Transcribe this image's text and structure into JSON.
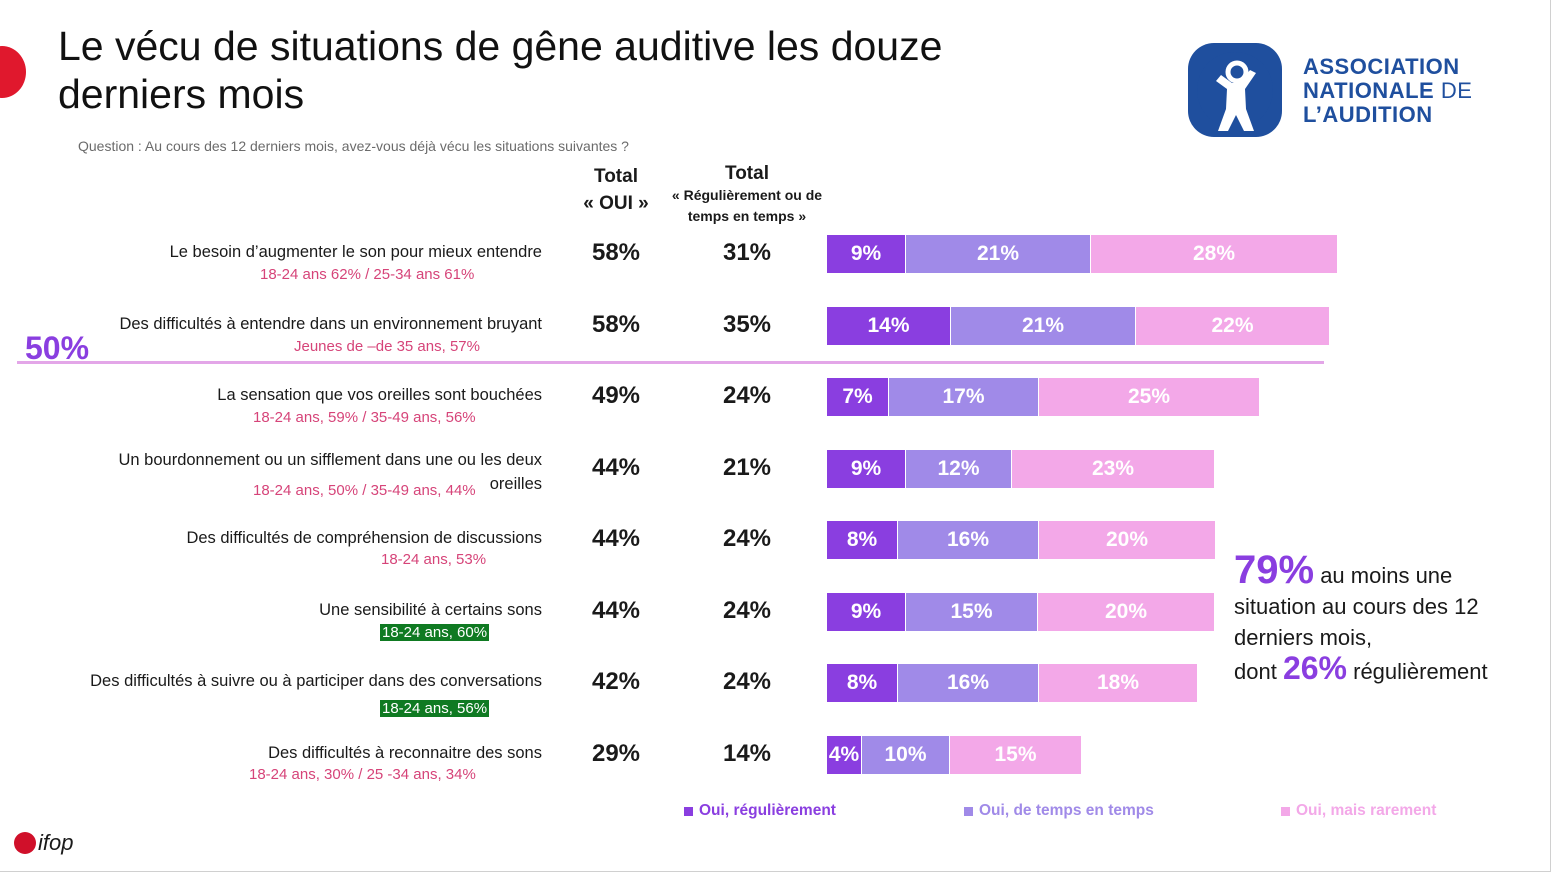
{
  "title": "Le vécu de situations de gêne auditive les douze derniers mois",
  "question": "Question : Au cours des 12 derniers mois, avez-vous déjà vécu les situations suivantes ?",
  "logo": {
    "line1": "ASSOCIATION",
    "line2a": "NATIONALE",
    "line2b": "DE",
    "line3": "L’AUDITION"
  },
  "headers": {
    "total_oui_1": "Total",
    "total_oui_2": "« OUI »",
    "total_reg_1": "Total",
    "total_reg_2": "« Régulièrement ou de temps en temps »"
  },
  "threshold": {
    "label": "50%",
    "value": 50
  },
  "colors": {
    "regular": "#8a3ee0",
    "sometimes": "#a08ae8",
    "rarely": "#f3a8e8",
    "subtext": "#d64479",
    "highlight": "#0f7a22"
  },
  "summary": {
    "big": "79%",
    "text1": "au moins une situation au cours des 12 derniers mois,",
    "text2a": "dont",
    "mid": "26%",
    "text2b": "régulièrement"
  },
  "legend": [
    "Oui, régulièrement",
    "Oui, de temps en temps",
    "Oui, mais rarement"
  ],
  "chart_data": {
    "type": "bar",
    "orientation": "horizontal",
    "stacked": true,
    "categories": [
      "Le besoin d’augmenter le son pour mieux entendre",
      "Des difficultés à entendre dans un environnement bruyant",
      "La sensation que vos oreilles sont bouchées",
      "Un bourdonnement ou un sifflement dans une ou les deux oreilles",
      "Des difficultés de compréhension de discussions",
      "Une sensibilité à certains sons",
      "Des difficultés à suivre ou à participer dans des conversations",
      "Des difficultés à reconnaitre des sons"
    ],
    "subtitles": [
      "18-24 ans 62% / 25-34 ans 61%",
      "Jeunes de –de 35 ans, 57%",
      "18-24 ans, 59% / 35-49 ans, 56%",
      "18-24 ans, 50% / 35-49 ans, 44%",
      "18-24 ans, 53%",
      "18-24 ans, 60%",
      "18-24 ans, 56%",
      "18-24 ans, 30% / 25 -34 ans, 34%"
    ],
    "subtitle_highlight": [
      false,
      false,
      false,
      false,
      false,
      true,
      true,
      false
    ],
    "total_oui": [
      "58%",
      "58%",
      "49%",
      "44%",
      "44%",
      "44%",
      "42%",
      "29%"
    ],
    "total_regular_or_sometimes": [
      "31%",
      "35%",
      "24%",
      "21%",
      "24%",
      "24%",
      "24%",
      "14%"
    ],
    "series": [
      {
        "name": "Oui, régulièrement",
        "values": [
          9,
          14,
          7,
          9,
          8,
          9,
          8,
          4
        ]
      },
      {
        "name": "Oui, de temps en temps",
        "values": [
          21,
          21,
          17,
          12,
          16,
          15,
          16,
          10
        ]
      },
      {
        "name": "Oui, mais rarement",
        "values": [
          28,
          22,
          25,
          23,
          20,
          20,
          18,
          15
        ]
      }
    ],
    "legend_position": "bottom"
  }
}
